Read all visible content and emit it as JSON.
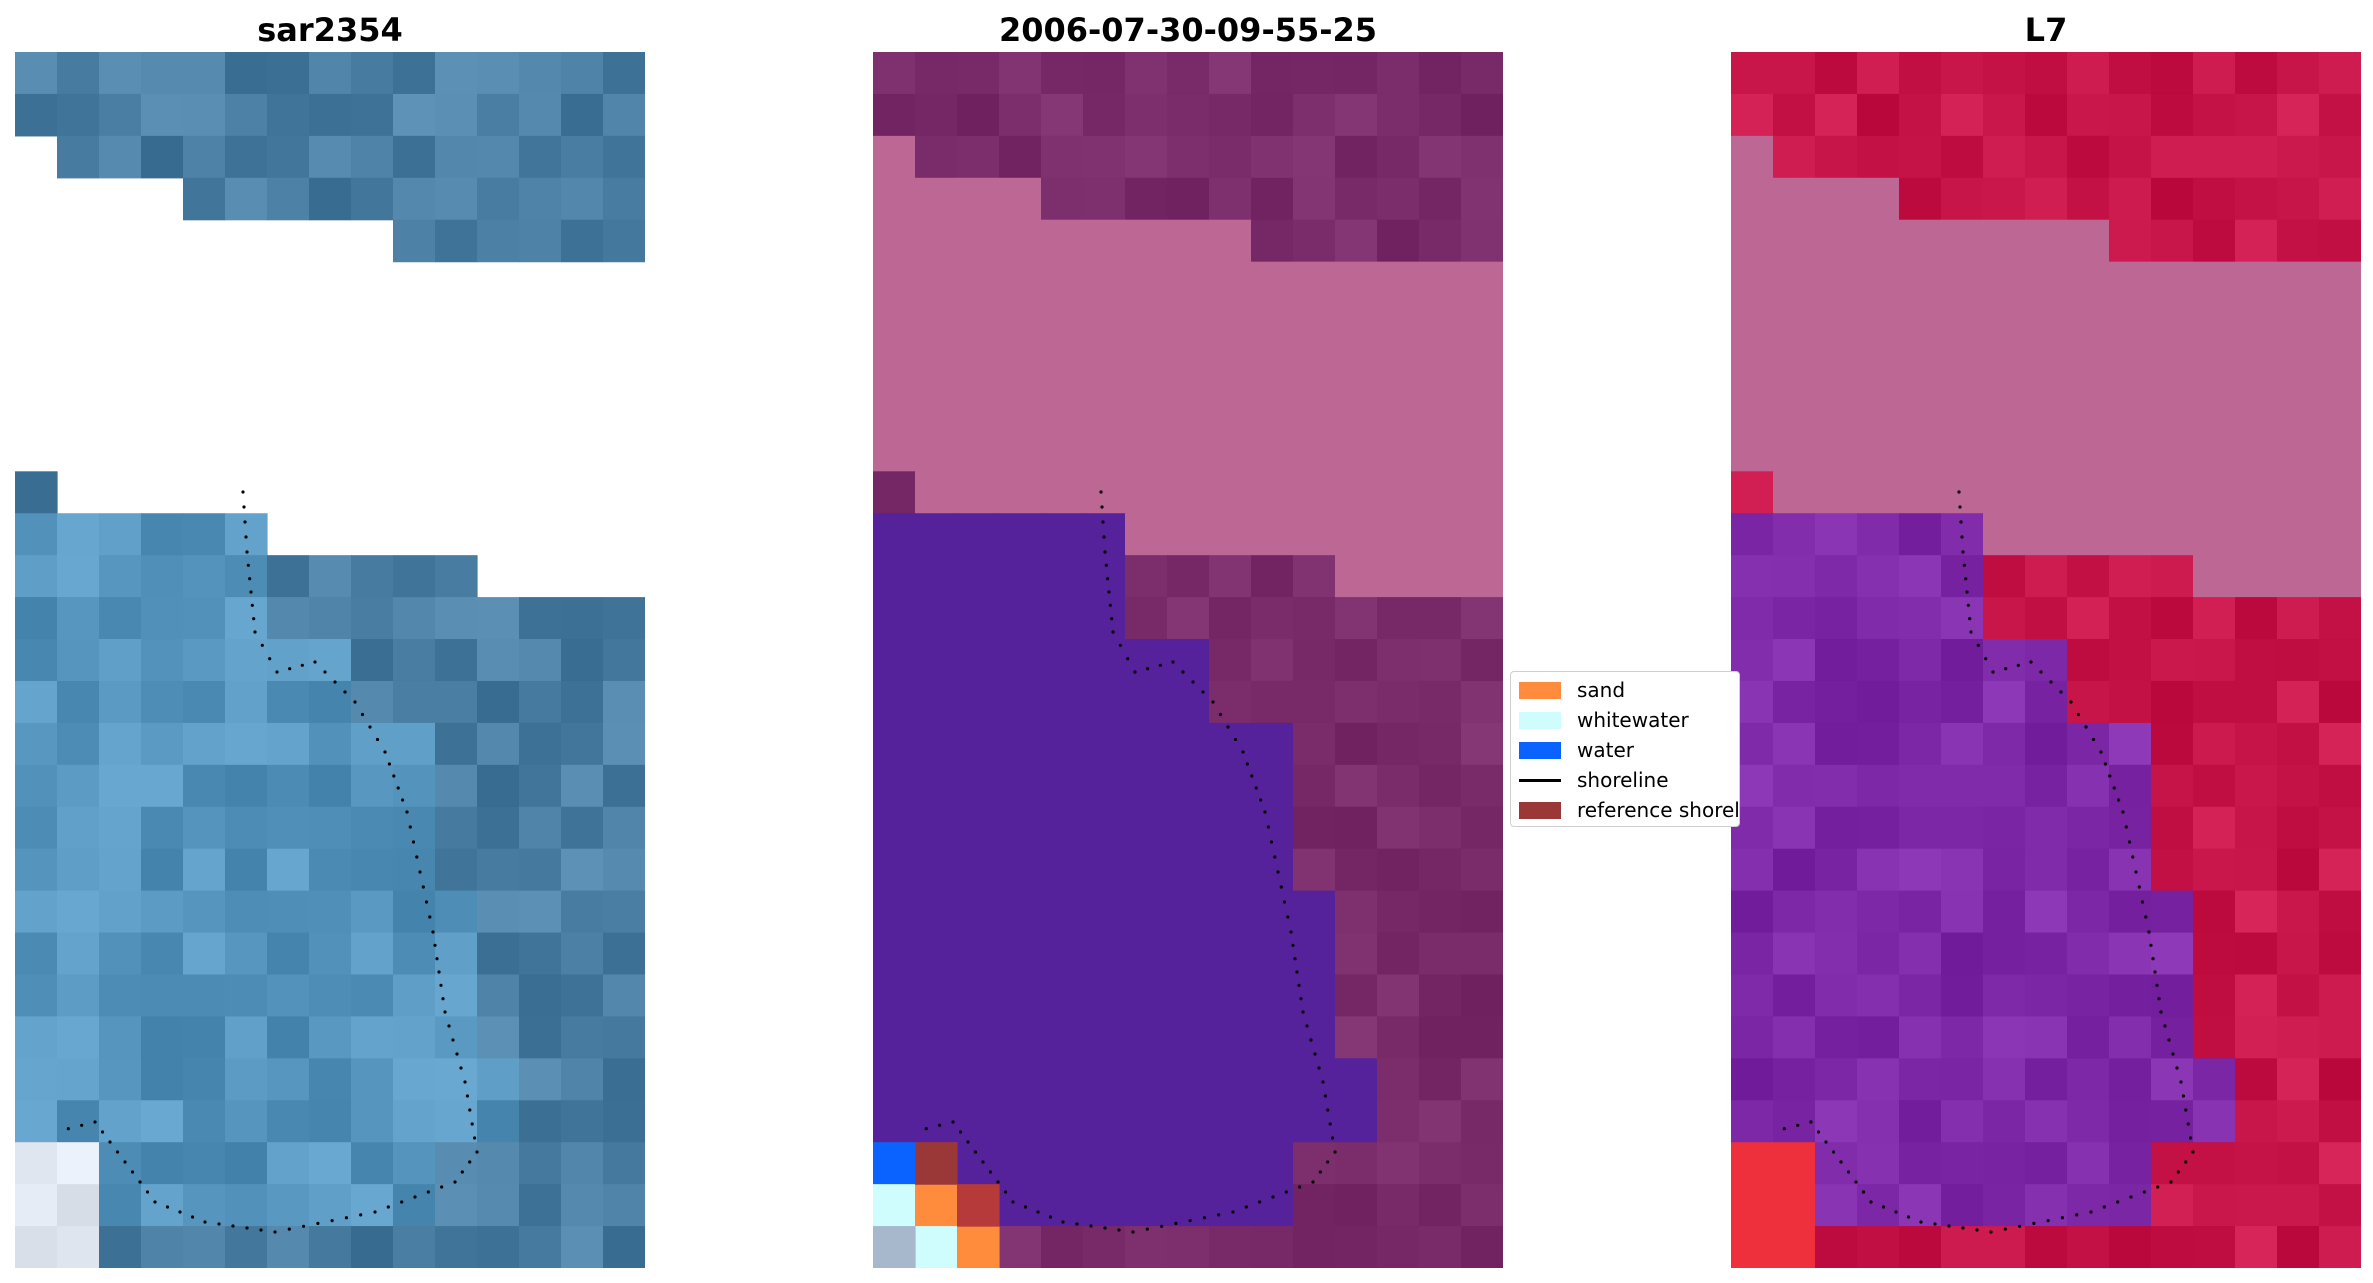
{
  "figure": {
    "panels": [
      {
        "title": "sar2354"
      },
      {
        "title": "2006-07-30-09-55-25"
      },
      {
        "title": "L7"
      }
    ]
  },
  "legend": {
    "items": [
      {
        "label": "sand",
        "color": "#ff8c3c",
        "kind": "patch"
      },
      {
        "label": "whitewater",
        "color": "#cffcfc",
        "kind": "patch"
      },
      {
        "label": "water",
        "color": "#0b63ff",
        "kind": "patch"
      },
      {
        "label": "shoreline",
        "color": "#000000",
        "kind": "line"
      },
      {
        "label": "reference shoreline",
        "color": "#9a3838",
        "kind": "patch"
      }
    ]
  },
  "colors": {
    "rgb_base": "#4a7ea2",
    "class_land": "#7a2b69",
    "class_water": "#55229b",
    "class_cloud": "#bd6894",
    "ndwi_land": "#c8154a",
    "ndwi_water": "#7f2aa8",
    "ndwi_cloud": "#bd6894"
  }
}
